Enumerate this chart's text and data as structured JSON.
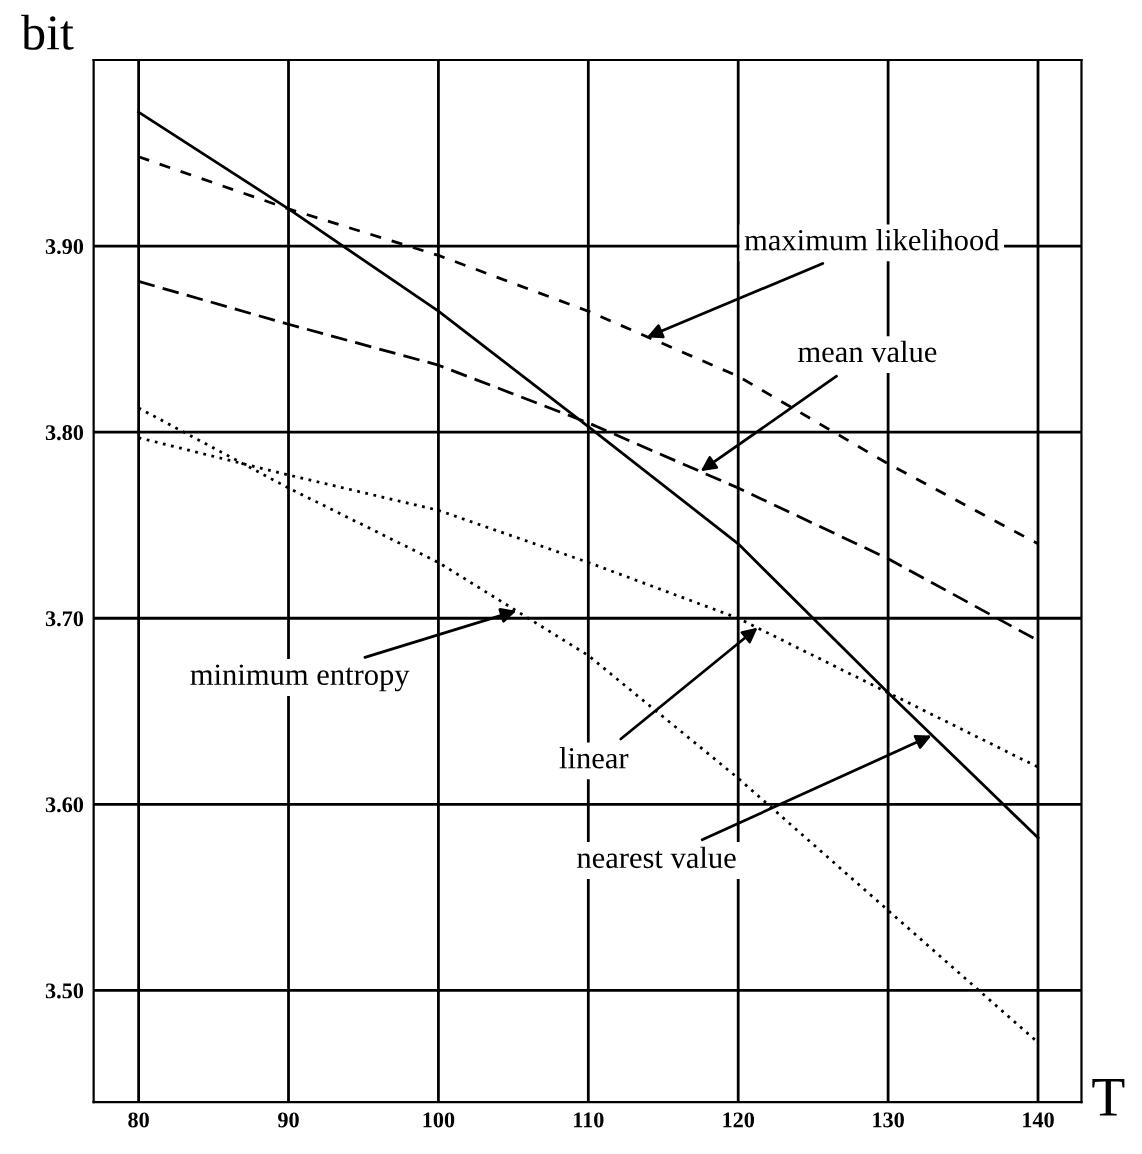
{
  "chart_data": {
    "type": "line",
    "xlabel": "T",
    "ylabel": "bit",
    "x": [
      80,
      90,
      100,
      110,
      120,
      130,
      140
    ],
    "series": [
      {
        "color": "#000000",
        "line_style": "solid",
        "values": [
          3.972,
          3.92,
          3.865,
          3.803,
          3.74,
          3.66,
          3.582
        ]
      },
      {
        "color": "#000000",
        "line_style": "dashed",
        "values": [
          3.948,
          3.92,
          3.895,
          3.865,
          3.83,
          3.783,
          3.74
        ]
      },
      {
        "color": "#000000",
        "line_style": "dashed",
        "values": [
          3.881,
          3.858,
          3.836,
          3.805,
          3.77,
          3.732,
          3.688
        ]
      },
      {
        "color": "#000000",
        "line_style": "dotted",
        "values": [
          3.797,
          3.777,
          3.758,
          3.73,
          3.7,
          3.66,
          3.62
        ]
      },
      {
        "color": "#000000",
        "line_style": "dotted",
        "values": [
          3.813,
          3.77,
          3.73,
          3.68,
          3.614,
          3.543,
          3.472
        ]
      }
    ],
    "annotations": [
      {
        "text": "maximum likelihood",
        "x": 113.9,
        "y": 3.851
      },
      {
        "text": "mean value",
        "x": 117.5,
        "y": 3.779
      },
      {
        "text": "minimum entropy",
        "x": 105.2,
        "y": 3.704
      },
      {
        "text": "linear",
        "x": 121.3,
        "y": 3.695
      },
      {
        "text": "nearest value",
        "x": 132.9,
        "y": 3.637
      }
    ],
    "xlim": [
      77,
      142.9
    ],
    "ylim": [
      3.44,
      4.0
    ],
    "xticks": [
      80,
      90,
      100,
      110,
      120,
      130,
      140
    ],
    "yticks": [
      {
        "value": 3.5,
        "label": "3.50"
      },
      {
        "value": 3.6,
        "label": "3.60"
      },
      {
        "value": 3.7,
        "label": "3.70"
      },
      {
        "value": 3.8,
        "label": "3.80"
      },
      {
        "value": 3.9,
        "label": "3.90"
      }
    ],
    "grid": true,
    "legend": false,
    "marker": "none"
  }
}
